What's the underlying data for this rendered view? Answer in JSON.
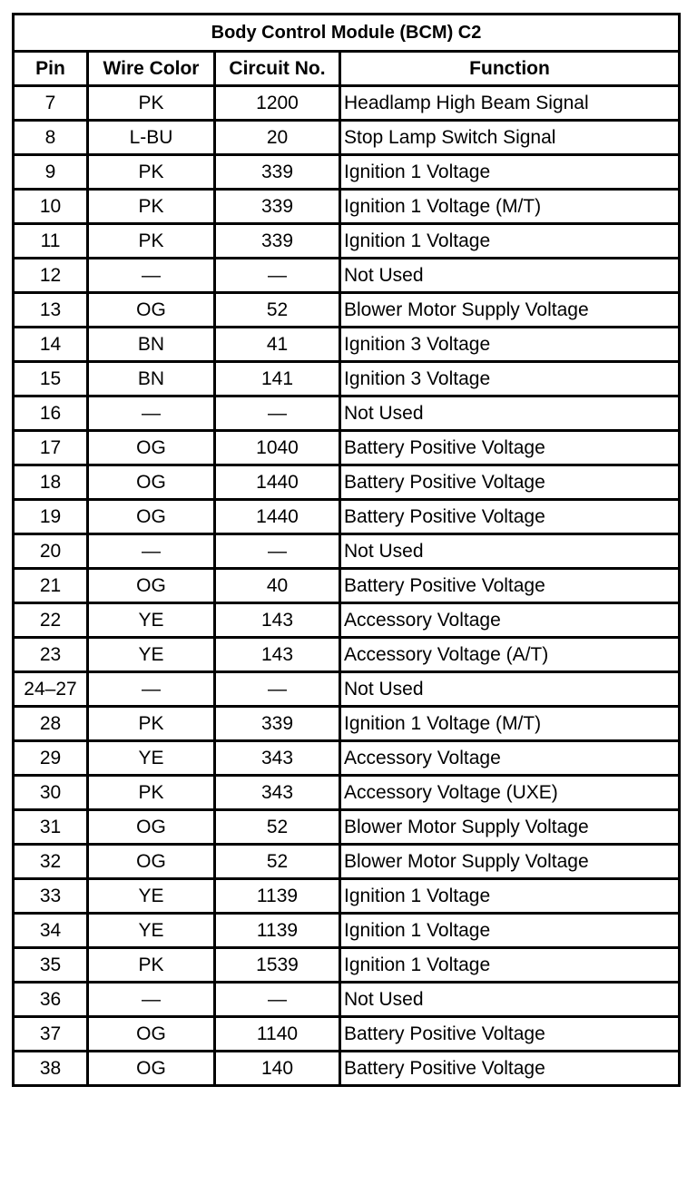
{
  "title": "Body Control Module (BCM) C2",
  "headers": [
    "Pin",
    "Wire Color",
    "Circuit No.",
    "Function"
  ],
  "rows": [
    [
      "7",
      "PK",
      "1200",
      "Headlamp High Beam Signal"
    ],
    [
      "8",
      "L-BU",
      "20",
      "Stop Lamp Switch Signal"
    ],
    [
      "9",
      "PK",
      "339",
      "Ignition 1 Voltage"
    ],
    [
      "10",
      "PK",
      "339",
      "Ignition 1 Voltage (M/T)"
    ],
    [
      "11",
      "PK",
      "339",
      "Ignition 1 Voltage"
    ],
    [
      "12",
      "—",
      "—",
      "Not Used"
    ],
    [
      "13",
      "OG",
      "52",
      "Blower Motor Supply Voltage"
    ],
    [
      "14",
      "BN",
      "41",
      "Ignition 3 Voltage"
    ],
    [
      "15",
      "BN",
      "141",
      "Ignition 3 Voltage"
    ],
    [
      "16",
      "—",
      "—",
      "Not Used"
    ],
    [
      "17",
      "OG",
      "1040",
      "Battery Positive Voltage"
    ],
    [
      "18",
      "OG",
      "1440",
      "Battery Positive Voltage"
    ],
    [
      "19",
      "OG",
      "1440",
      "Battery Positive Voltage"
    ],
    [
      "20",
      "—",
      "—",
      "Not Used"
    ],
    [
      "21",
      "OG",
      "40",
      "Battery Positive Voltage"
    ],
    [
      "22",
      "YE",
      "143",
      "Accessory Voltage"
    ],
    [
      "23",
      "YE",
      "143",
      "Accessory Voltage (A/T)"
    ],
    [
      "24–27",
      "—",
      "—",
      "Not Used"
    ],
    [
      "28",
      "PK",
      "339",
      "Ignition 1 Voltage (M/T)"
    ],
    [
      "29",
      "YE",
      "343",
      "Accessory Voltage"
    ],
    [
      "30",
      "PK",
      "343",
      "Accessory Voltage (UXE)"
    ],
    [
      "31",
      "OG",
      "52",
      "Blower Motor Supply Voltage"
    ],
    [
      "32",
      "OG",
      "52",
      "Blower Motor Supply Voltage"
    ],
    [
      "33",
      "YE",
      "1139",
      "Ignition 1 Voltage"
    ],
    [
      "34",
      "YE",
      "1139",
      "Ignition 1 Voltage"
    ],
    [
      "35",
      "PK",
      "1539",
      "Ignition 1 Voltage"
    ],
    [
      "36",
      "—",
      "—",
      "Not Used"
    ],
    [
      "37",
      "OG",
      "1140",
      "Battery Positive Voltage"
    ],
    [
      "38",
      "OG",
      "140",
      "Battery Positive Voltage"
    ]
  ]
}
